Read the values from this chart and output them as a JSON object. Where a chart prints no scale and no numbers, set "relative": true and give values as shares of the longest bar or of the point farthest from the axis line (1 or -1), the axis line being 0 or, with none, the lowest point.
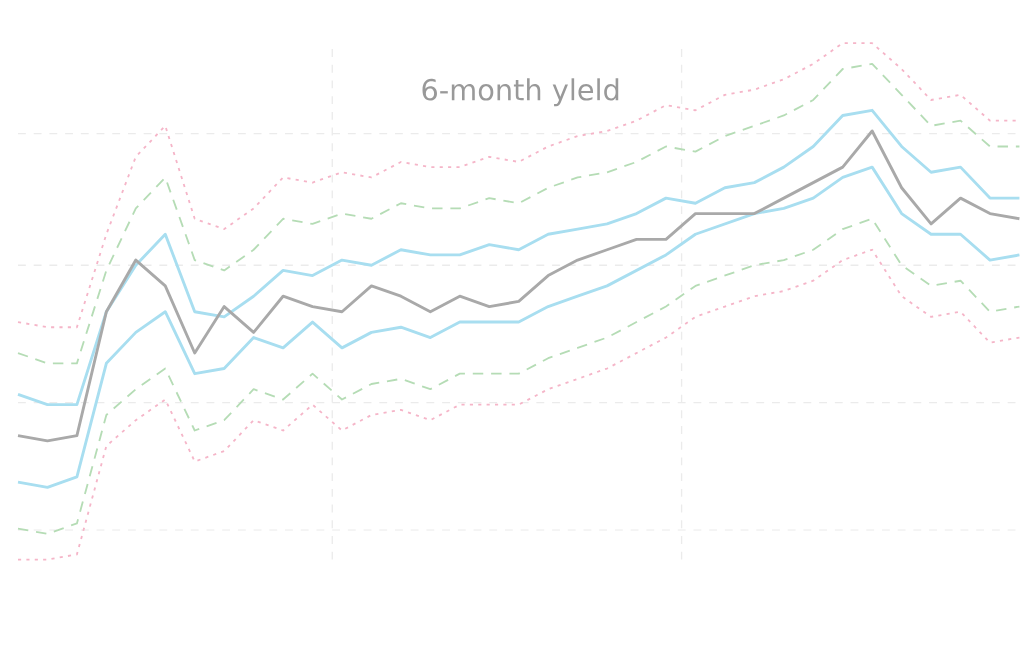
{
  "chart_data": {
    "type": "line",
    "title": "6-month yleld",
    "relative": true,
    "grid": true,
    "marker": "none",
    "categories": [
      null,
      null,
      null,
      null,
      null,
      null,
      null,
      null,
      null,
      null,
      null,
      null,
      null,
      null,
      null,
      null,
      null,
      null,
      null,
      null,
      null,
      null,
      null,
      null,
      null,
      null,
      null,
      null,
      null,
      null,
      null,
      null,
      null,
      null,
      null
    ],
    "series": [
      {
        "color": "#f5b5c8",
        "line_style": "dotted",
        "values": [
          0.46,
          0.45,
          0.45,
          0.63,
          0.78,
          0.84,
          0.66,
          0.64,
          0.68,
          0.74,
          0.73,
          0.75,
          0.74,
          0.77,
          0.76,
          0.76,
          0.78,
          0.77,
          0.8,
          0.82,
          0.83,
          0.85,
          0.88,
          0.87,
          0.9,
          0.91,
          0.93,
          0.96,
          1.0,
          1.0,
          0.95,
          0.89,
          0.9,
          0.85,
          0.85
        ]
      },
      {
        "color": "#f5b5c8",
        "line_style": "dotted",
        "values": [
          0.0,
          0.0,
          0.01,
          0.22,
          0.27,
          0.31,
          0.19,
          0.21,
          0.27,
          0.25,
          0.3,
          0.25,
          0.28,
          0.29,
          0.27,
          0.3,
          0.3,
          0.3,
          0.33,
          0.35,
          0.37,
          0.4,
          0.43,
          0.47,
          0.49,
          0.51,
          0.52,
          0.54,
          0.58,
          0.6,
          0.51,
          0.47,
          0.48,
          0.42,
          0.43
        ]
      },
      {
        "color": "#b5dcb5",
        "line_style": "dashed",
        "values": [
          0.4,
          0.38,
          0.38,
          0.56,
          0.68,
          0.74,
          0.58,
          0.56,
          0.6,
          0.66,
          0.65,
          0.67,
          0.66,
          0.69,
          0.68,
          0.68,
          0.7,
          0.69,
          0.72,
          0.74,
          0.75,
          0.77,
          0.8,
          0.79,
          0.82,
          0.84,
          0.86,
          0.89,
          0.95,
          0.96,
          0.9,
          0.84,
          0.85,
          0.8,
          0.8
        ]
      },
      {
        "color": "#b5dcb5",
        "line_style": "dashed",
        "values": [
          0.06,
          0.05,
          0.07,
          0.28,
          0.33,
          0.37,
          0.25,
          0.27,
          0.33,
          0.31,
          0.36,
          0.31,
          0.34,
          0.35,
          0.33,
          0.36,
          0.36,
          0.36,
          0.39,
          0.41,
          0.43,
          0.46,
          0.49,
          0.53,
          0.55,
          0.57,
          0.58,
          0.6,
          0.64,
          0.66,
          0.57,
          0.53,
          0.54,
          0.48,
          0.49
        ]
      },
      {
        "color": "#a8def0",
        "line_style": "solid",
        "values": [
          0.32,
          0.3,
          0.3,
          0.48,
          0.57,
          0.63,
          0.48,
          0.47,
          0.51,
          0.56,
          0.55,
          0.58,
          0.57,
          0.6,
          0.59,
          0.59,
          0.61,
          0.6,
          0.63,
          0.64,
          0.65,
          0.67,
          0.7,
          0.69,
          0.72,
          0.73,
          0.76,
          0.8,
          0.86,
          0.87,
          0.8,
          0.75,
          0.76,
          0.7,
          0.7
        ]
      },
      {
        "color": "#a8def0",
        "line_style": "solid",
        "values": [
          0.15,
          0.14,
          0.16,
          0.38,
          0.44,
          0.48,
          0.36,
          0.37,
          0.43,
          0.41,
          0.46,
          0.41,
          0.44,
          0.45,
          0.43,
          0.46,
          0.46,
          0.46,
          0.49,
          0.51,
          0.53,
          0.56,
          0.59,
          0.63,
          0.65,
          0.67,
          0.68,
          0.7,
          0.74,
          0.76,
          0.67,
          0.63,
          0.63,
          0.58,
          0.59
        ]
      },
      {
        "color": "#a9a9a9",
        "line_style": "solid",
        "values": [
          0.24,
          0.23,
          0.24,
          0.48,
          0.58,
          0.53,
          0.4,
          0.49,
          0.44,
          0.51,
          0.49,
          0.48,
          0.53,
          0.51,
          0.48,
          0.51,
          0.49,
          0.5,
          0.55,
          0.58,
          0.6,
          0.62,
          0.62,
          0.67,
          0.67,
          0.67,
          0.7,
          0.73,
          0.76,
          0.83,
          0.72,
          0.65,
          0.7,
          0.67,
          0.66
        ]
      }
    ]
  }
}
